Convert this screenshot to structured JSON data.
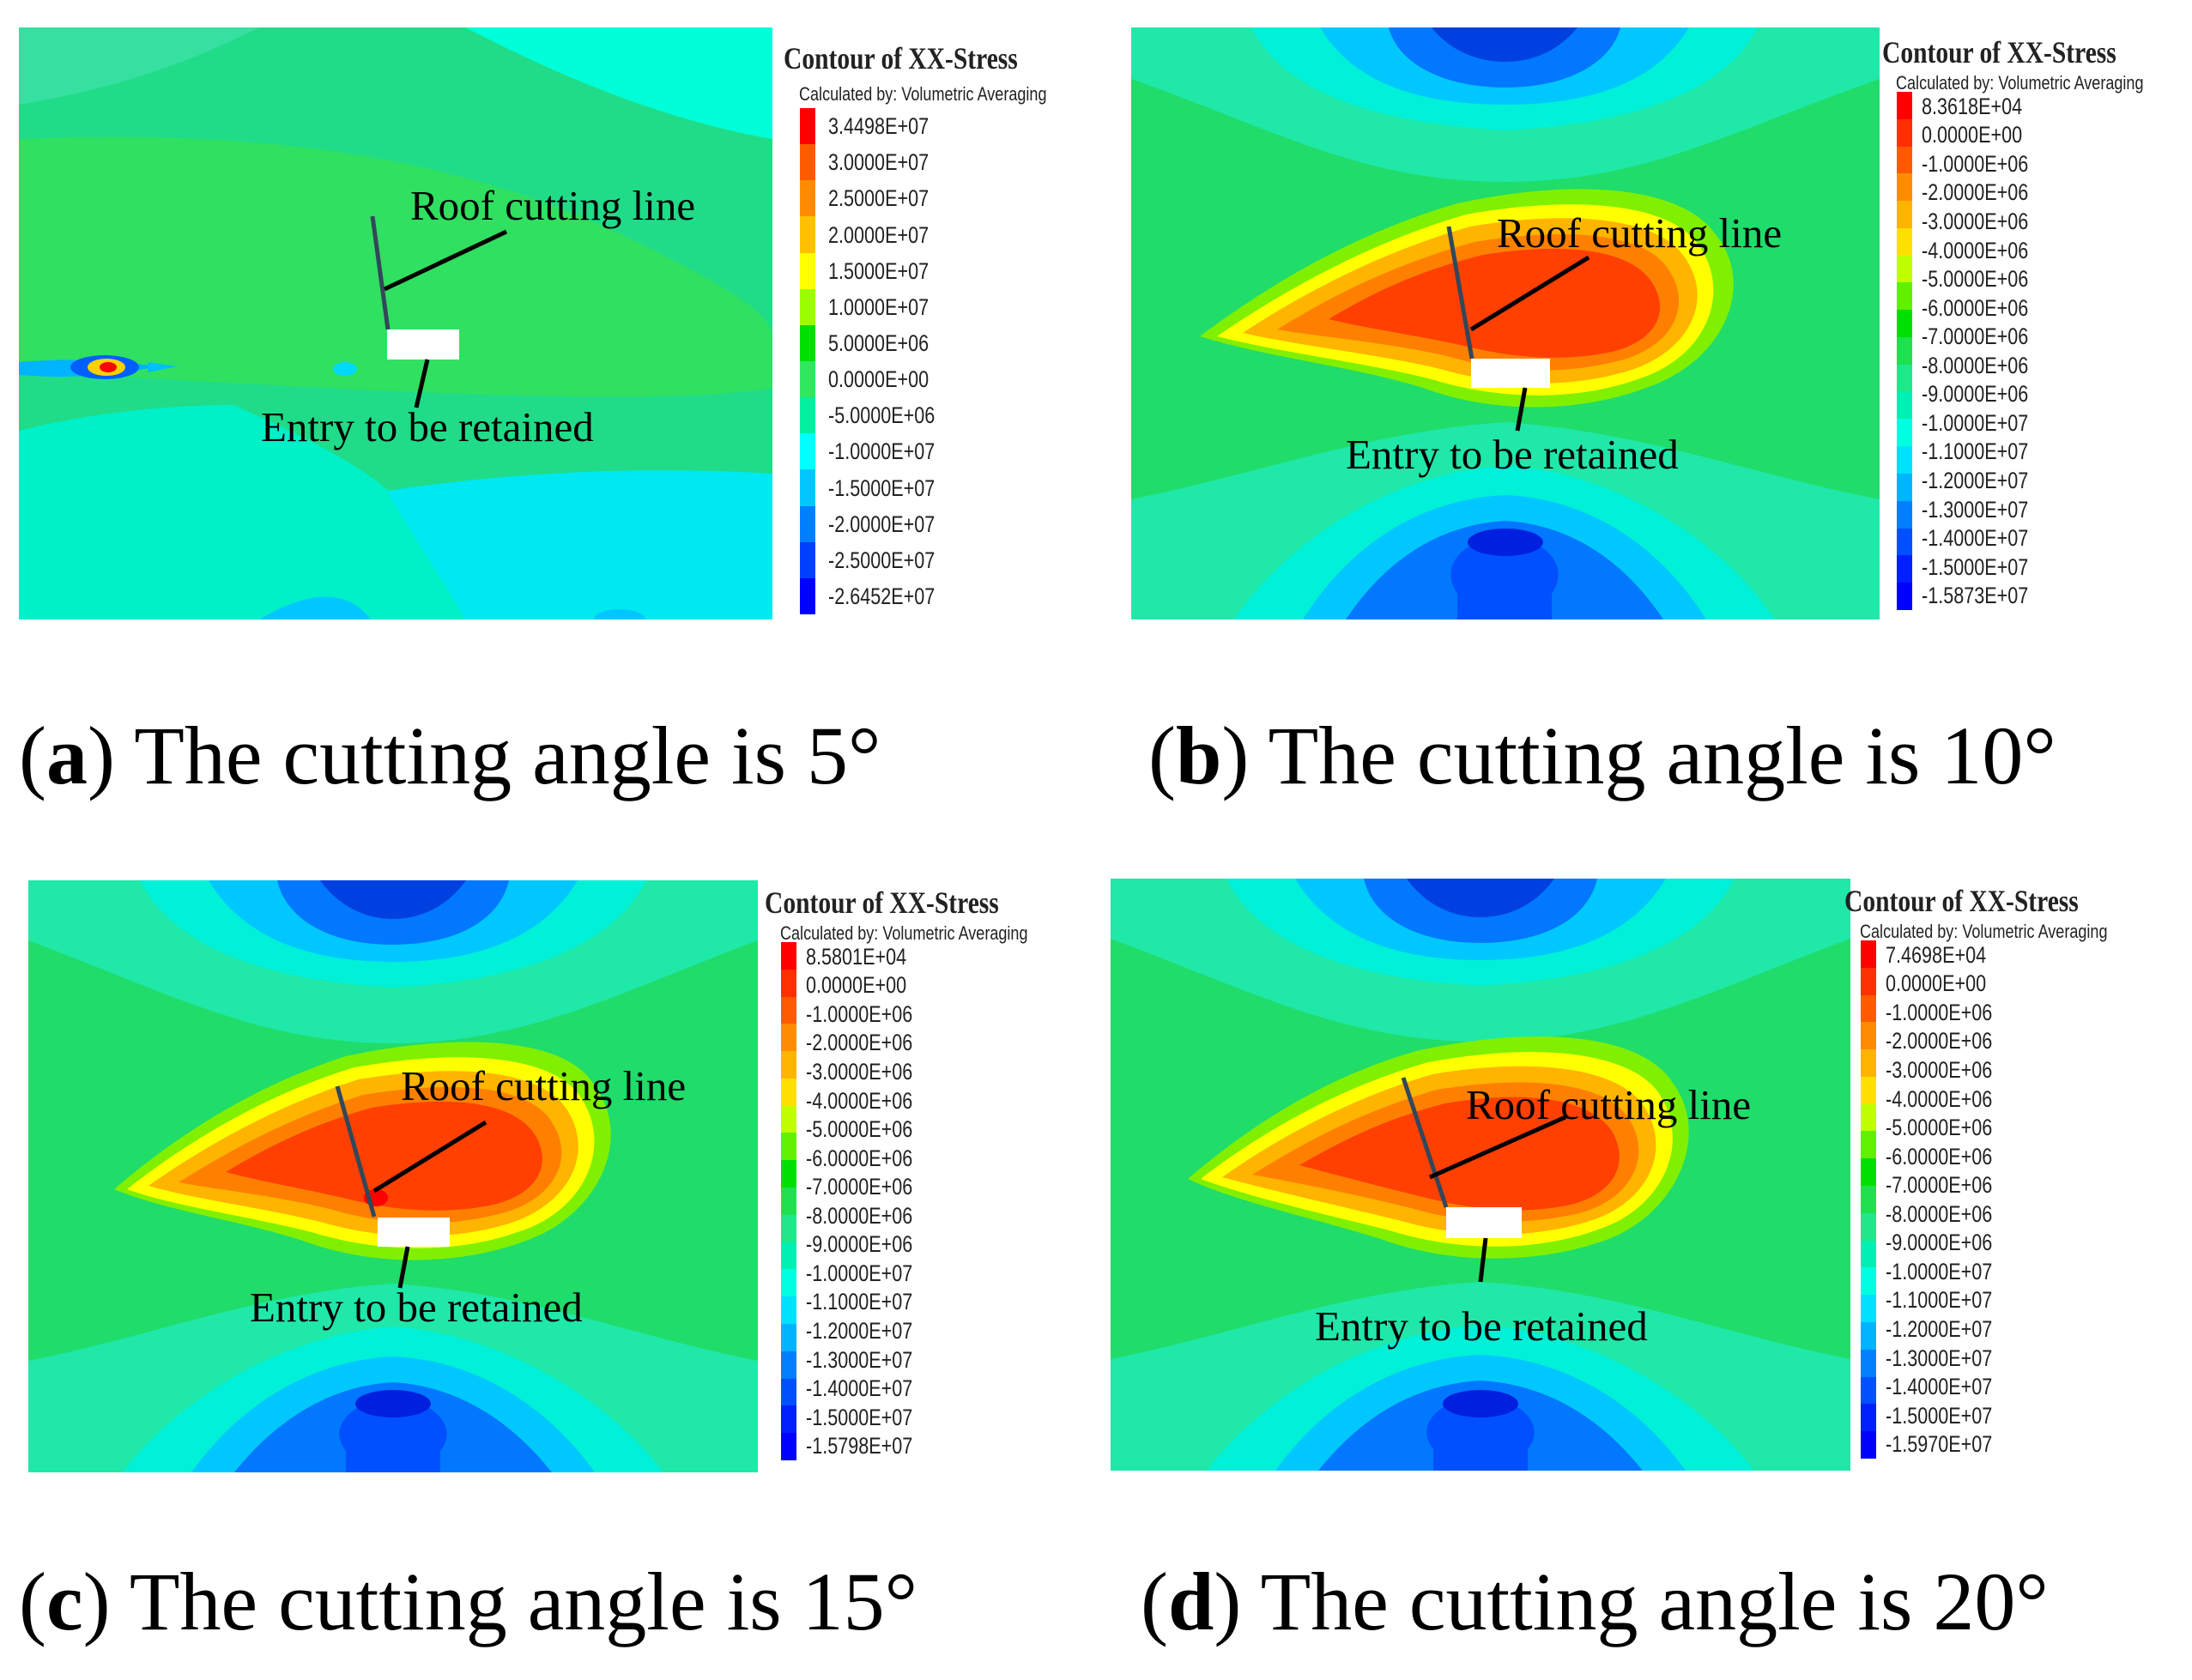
{
  "figure": {
    "legend_title": "Contour of XX-Stress",
    "legend_subtitle": "Calculated by: Volumetric Averaging",
    "annotation_roof": "Roof cutting line",
    "annotation_entry": "Entry to be retained",
    "caption_text": "The cutting angle is",
    "panels": [
      {
        "letter": "a",
        "angle": "5°",
        "scale_colors": [
          "#ff0000",
          "#ff5a00",
          "#ff8c00",
          "#ffc000",
          "#ffff00",
          "#9cff00",
          "#00e000",
          "#30e860",
          "#00f0a0",
          "#00ffff",
          "#00c8ff",
          "#0080ff",
          "#0040ff",
          "#0000ff"
        ],
        "legend_values": [
          "3.4498E+07",
          "3.0000E+07",
          "2.5000E+07",
          "2.0000E+07",
          "1.5000E+07",
          "1.0000E+07",
          "5.0000E+06",
          "0.0000E+00",
          "-5.0000E+06",
          "-1.0000E+07",
          "-1.5000E+07",
          "-2.0000E+07",
          "-2.5000E+07",
          "-2.6452E+07"
        ]
      },
      {
        "letter": "b",
        "angle": "10°",
        "scale_colors": [
          "#ff0000",
          "#ff3000",
          "#ff5a00",
          "#ff8c00",
          "#ffb400",
          "#ffe000",
          "#c0ff00",
          "#60f000",
          "#00e000",
          "#20e050",
          "#20e88a",
          "#00f0b4",
          "#00ffe0",
          "#00e0ff",
          "#00b4ff",
          "#0080ff",
          "#0050ff",
          "#0020ff",
          "#0000ff"
        ],
        "legend_values": [
          "8.3618E+04",
          "0.0000E+00",
          "-1.0000E+06",
          "-2.0000E+06",
          "-3.0000E+06",
          "-4.0000E+06",
          "-5.0000E+06",
          "-6.0000E+06",
          "-7.0000E+06",
          "-8.0000E+06",
          "-9.0000E+06",
          "-1.0000E+07",
          "-1.1000E+07",
          "-1.2000E+07",
          "-1.3000E+07",
          "-1.4000E+07",
          "-1.5000E+07",
          "-1.5873E+07"
        ]
      },
      {
        "letter": "c",
        "angle": "15°",
        "scale_colors": [
          "#ff0000",
          "#ff3000",
          "#ff5a00",
          "#ff8c00",
          "#ffb400",
          "#ffe000",
          "#c0ff00",
          "#60f000",
          "#00e000",
          "#20e050",
          "#20e88a",
          "#00f0b4",
          "#00ffe0",
          "#00e0ff",
          "#00b4ff",
          "#0080ff",
          "#0050ff",
          "#0020ff",
          "#0000ff"
        ],
        "legend_values": [
          "8.5801E+04",
          "0.0000E+00",
          "-1.0000E+06",
          "-2.0000E+06",
          "-3.0000E+06",
          "-4.0000E+06",
          "-5.0000E+06",
          "-6.0000E+06",
          "-7.0000E+06",
          "-8.0000E+06",
          "-9.0000E+06",
          "-1.0000E+07",
          "-1.1000E+07",
          "-1.2000E+07",
          "-1.3000E+07",
          "-1.4000E+07",
          "-1.5000E+07",
          "-1.5798E+07"
        ]
      },
      {
        "letter": "d",
        "angle": "20°",
        "scale_colors": [
          "#ff0000",
          "#ff3000",
          "#ff5a00",
          "#ff8c00",
          "#ffb400",
          "#ffe000",
          "#c0ff00",
          "#60f000",
          "#00e000",
          "#20e050",
          "#20e88a",
          "#00f0b4",
          "#00ffe0",
          "#00e0ff",
          "#00b4ff",
          "#0080ff",
          "#0050ff",
          "#0020ff",
          "#0000ff"
        ],
        "legend_values": [
          "7.4698E+04",
          "0.0000E+00",
          "-1.0000E+06",
          "-2.0000E+06",
          "-3.0000E+06",
          "-4.0000E+06",
          "-5.0000E+06",
          "-6.0000E+06",
          "-7.0000E+06",
          "-8.0000E+06",
          "-9.0000E+06",
          "-1.0000E+07",
          "-1.1000E+07",
          "-1.2000E+07",
          "-1.3000E+07",
          "-1.4000E+07",
          "-1.5000E+07",
          "-1.5970E+07"
        ]
      }
    ]
  }
}
